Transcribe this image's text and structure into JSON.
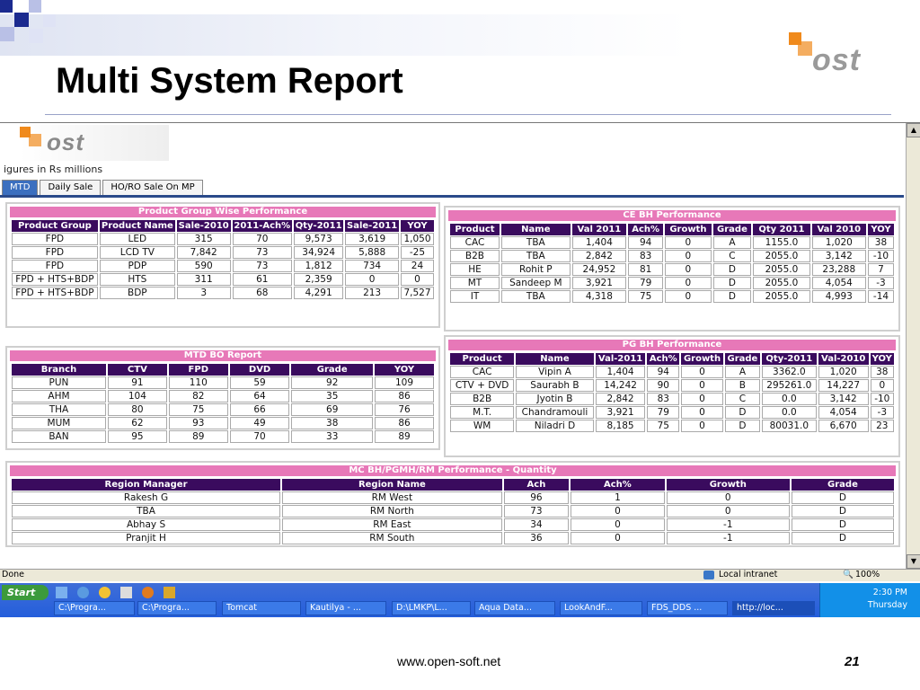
{
  "slide": {
    "title": "Multi System Report",
    "footer_url": "www.open-soft.net",
    "page_number": "21",
    "logo_text": "ost"
  },
  "app": {
    "logo_text": "ost",
    "figures_note": "igures in Rs millions",
    "tabs": [
      "MTD",
      "Daily Sale",
      "HO/RO Sale On MP"
    ],
    "active_tab": "MTD"
  },
  "product_group": {
    "title": "Product Group Wise Performance",
    "headers": [
      "Product Group",
      "Product Name",
      "Sale-2010",
      "2011-Ach%",
      "Qty-2011",
      "Sale-2011",
      "YOY"
    ],
    "rows": [
      [
        "FPD",
        "LED",
        "315",
        "70",
        "9,573",
        "3,619",
        "1,050"
      ],
      [
        "FPD",
        "LCD TV",
        "7,842",
        "73",
        "34,924",
        "5,888",
        "-25"
      ],
      [
        "FPD",
        "PDP",
        "590",
        "73",
        "1,812",
        "734",
        "24"
      ],
      [
        "FPD + HTS+BDP",
        "HTS",
        "311",
        "61",
        "2,359",
        "0",
        "0"
      ],
      [
        "FPD + HTS+BDP",
        "BDP",
        "3",
        "68",
        "4,291",
        "213",
        "7,527"
      ]
    ]
  },
  "ce_bh": {
    "title": "CE BH Performance",
    "headers": [
      "Product",
      "Name",
      "Val 2011",
      "Ach%",
      "Growth",
      "Grade",
      "Qty 2011",
      "Val 2010",
      "YOY"
    ],
    "rows": [
      [
        "CAC",
        "TBA",
        "1,404",
        "94",
        "0",
        "A",
        "1155.0",
        "1,020",
        "38"
      ],
      [
        "B2B",
        "TBA",
        "2,842",
        "83",
        "0",
        "C",
        "2055.0",
        "3,142",
        "-10"
      ],
      [
        "HE",
        "Rohit P",
        "24,952",
        "81",
        "0",
        "D",
        "2055.0",
        "23,288",
        "7"
      ],
      [
        "MT",
        "Sandeep M",
        "3,921",
        "79",
        "0",
        "D",
        "2055.0",
        "4,054",
        "-3"
      ],
      [
        "IT",
        "TBA",
        "4,318",
        "75",
        "0",
        "D",
        "2055.0",
        "4,993",
        "-14"
      ]
    ]
  },
  "mtd_bo": {
    "title": "MTD BO Report",
    "headers": [
      "Branch",
      "CTV",
      "FPD",
      "DVD",
      "Grade",
      "YOY"
    ],
    "rows": [
      [
        "PUN",
        "91",
        "110",
        "59",
        "92",
        "109"
      ],
      [
        "AHM",
        "104",
        "82",
        "64",
        "35",
        "86"
      ],
      [
        "THA",
        "80",
        "75",
        "66",
        "69",
        "76"
      ],
      [
        "MUM",
        "62",
        "93",
        "49",
        "38",
        "86"
      ],
      [
        "BAN",
        "95",
        "89",
        "70",
        "33",
        "89"
      ]
    ]
  },
  "pg_bh": {
    "title": "PG BH Performance",
    "headers": [
      "Product",
      "Name",
      "Val-2011",
      "Ach%",
      "Growth",
      "Grade",
      "Qty-2011",
      "Val-2010",
      "YOY"
    ],
    "rows": [
      [
        "CAC",
        "Vipin A",
        "1,404",
        "94",
        "0",
        "A",
        "3362.0",
        "1,020",
        "38"
      ],
      [
        "CTV + DVD",
        "Saurabh B",
        "14,242",
        "90",
        "0",
        "B",
        "295261.0",
        "14,227",
        "0"
      ],
      [
        "B2B",
        "Jyotin B",
        "2,842",
        "83",
        "0",
        "C",
        "0.0",
        "3,142",
        "-10"
      ],
      [
        "M.T.",
        "Chandramouli",
        "3,921",
        "79",
        "0",
        "D",
        "0.0",
        "4,054",
        "-3"
      ],
      [
        "WM",
        "Niladri D",
        "8,185",
        "75",
        "0",
        "D",
        "80031.0",
        "6,670",
        "23"
      ]
    ]
  },
  "mc_bh": {
    "title": "MC BH/PGMH/RM Performance - Quantity",
    "headers": [
      "Region Manager",
      "Region Name",
      "Ach",
      "Ach%",
      "Growth",
      "Grade"
    ],
    "rows": [
      [
        "Rakesh G",
        "RM West",
        "96",
        "1",
        "0",
        "D"
      ],
      [
        "TBA",
        "RM North",
        "73",
        "0",
        "0",
        "D"
      ],
      [
        "Abhay S",
        "RM East",
        "34",
        "0",
        "-1",
        "D"
      ],
      [
        "Pranjit H",
        "RM South",
        "36",
        "0",
        "-1",
        "D"
      ]
    ]
  },
  "statusbar": {
    "left": "Done",
    "zone": "Local intranet",
    "zoom": "100%"
  },
  "taskbar": {
    "start": "Start",
    "row1": [
      "C:\\Progra...",
      "C:\\Progra...",
      "Tomcat",
      "Kautilya - ...",
      "D:\\LMKP\\L...",
      "Aqua Data...",
      "LookAndF...",
      "FDS_DDS ...",
      "http://loc..."
    ],
    "time": "2:30 PM",
    "day": "Thursday"
  },
  "colors": {
    "header_bg": "#3a0b5e",
    "title_pink": "#e778b8",
    "tab_blue": "#3b6fbf",
    "taskbar_blue": "#245edb"
  }
}
